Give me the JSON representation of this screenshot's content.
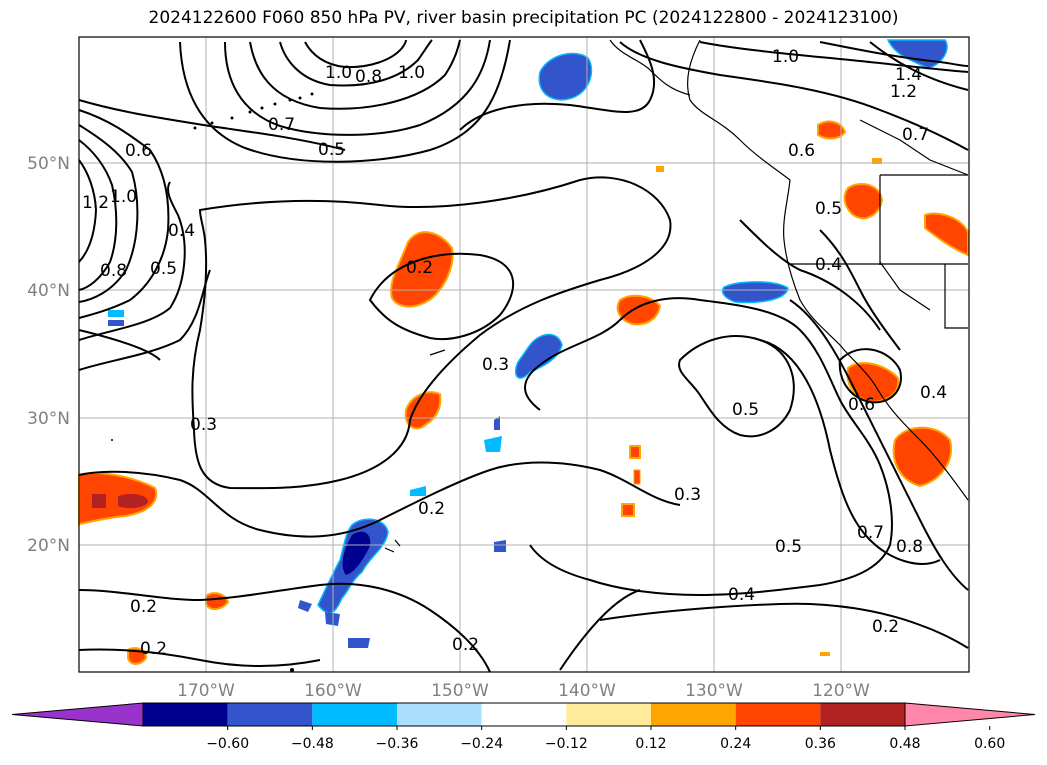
{
  "title": "2024122600 F060 850 hPa PV, river basin precipitation PC (2024122800 - 2024123100)",
  "lat_labels": [
    "50°N",
    "40°N",
    "30°N",
    "20°N"
  ],
  "lon_labels": [
    "170°W",
    "160°W",
    "150°W",
    "140°W",
    "130°W",
    "120°W"
  ],
  "colorbar": {
    "ticks": [
      "−0.60",
      "−0.48",
      "−0.36",
      "−0.24",
      "−0.12",
      "0.12",
      "0.24",
      "0.36",
      "0.48",
      "0.60"
    ],
    "colors": [
      "#9933cc",
      "#000090",
      "#3355cc",
      "#00bbff",
      "#aadeff",
      "#ffffff",
      "#ffeb99",
      "#ffa500",
      "#ff4500",
      "#b22222",
      "#ff88aa"
    ]
  },
  "contour_labels": [
    "1.0",
    "0.8",
    "1.0",
    "0.7",
    "0.5",
    "0.6",
    "1.2",
    "1.0",
    "0.4",
    "0.5",
    "0.8",
    "0.2",
    "0.3",
    "0.3",
    "0.2",
    "1.0",
    "1.4",
    "1.2",
    "0.7",
    "0.6",
    "0.5",
    "0.4",
    "0.5",
    "0.3",
    "0.5",
    "0.6",
    "0.4",
    "0.7",
    "0.8",
    "0.4",
    "0.2",
    "0.2",
    "0.2",
    "0.2"
  ],
  "colors": {
    "contour": "#000000",
    "grid": "#b0b0b0",
    "land": "#000000",
    "axis_text": "#808080"
  }
}
